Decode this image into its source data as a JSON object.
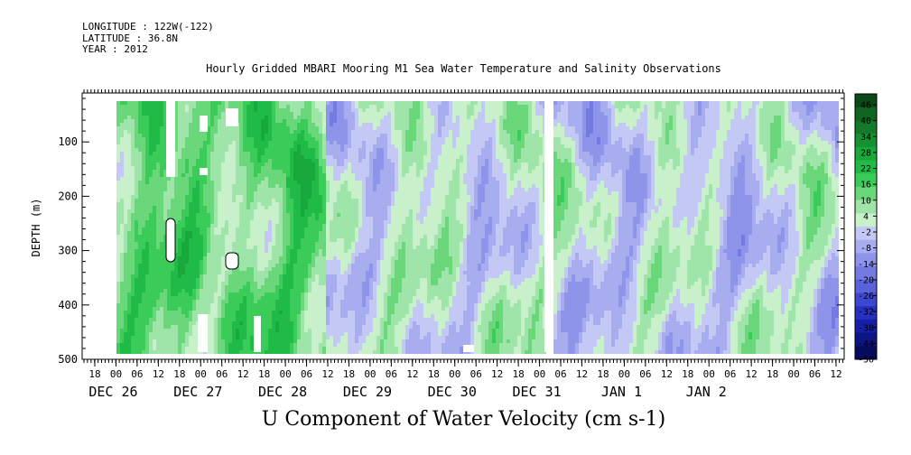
{
  "header": {
    "longitude": "LONGITUDE : 122W(-122)",
    "latitude": "LATITUDE : 36.8N",
    "year": "YEAR : 2012"
  },
  "chart_data": {
    "type": "heatmap",
    "title": "Hourly Gridded MBARI Mooring M1 Sea Water Temperature and Salinity Observations",
    "xlabel": "U Component of Water Velocity (cm s-1)",
    "ylabel": "DEPTH (m)",
    "ylim": [
      500,
      10
    ],
    "yticks": [
      100,
      200,
      300,
      400,
      500
    ],
    "hour_ticks": [
      "18",
      "00",
      "06",
      "12",
      "18",
      "00",
      "06",
      "12",
      "18",
      "00",
      "06",
      "12",
      "18",
      "00",
      "06",
      "12",
      "18",
      "00",
      "06",
      "12",
      "18",
      "00",
      "06",
      "12",
      "18",
      "00",
      "06",
      "12",
      "18",
      "00",
      "06",
      "12",
      "18",
      "00",
      "06",
      "12"
    ],
    "day_labels": [
      "DEC 26",
      "DEC 27",
      "DEC 28",
      "DEC 29",
      "DEC 30",
      "DEC 31",
      "JAN  1",
      "JAN  2"
    ],
    "colorbar_levels": [
      "46",
      "40",
      "34",
      "28",
      "22",
      "16",
      "10",
      "4",
      "-2",
      "-8",
      "-14",
      "-20",
      "-26",
      "-32",
      "-38",
      "-44",
      "-50"
    ],
    "colorbar_colors": [
      "#0b4a16",
      "#0f6420",
      "#127a2a",
      "#159132",
      "#18a83b",
      "#1fbb46",
      "#3acb58",
      "#6ad77a",
      "#9fe4a8",
      "#c7f0cb",
      "#c4c8f5",
      "#a8adf0",
      "#8e94ea",
      "#737ae2",
      "#5a62da",
      "#3e47cf",
      "#2630c2",
      "#161fa8",
      "#0d1585",
      "#060b5e"
    ],
    "value_range": [
      -50,
      52
    ]
  }
}
